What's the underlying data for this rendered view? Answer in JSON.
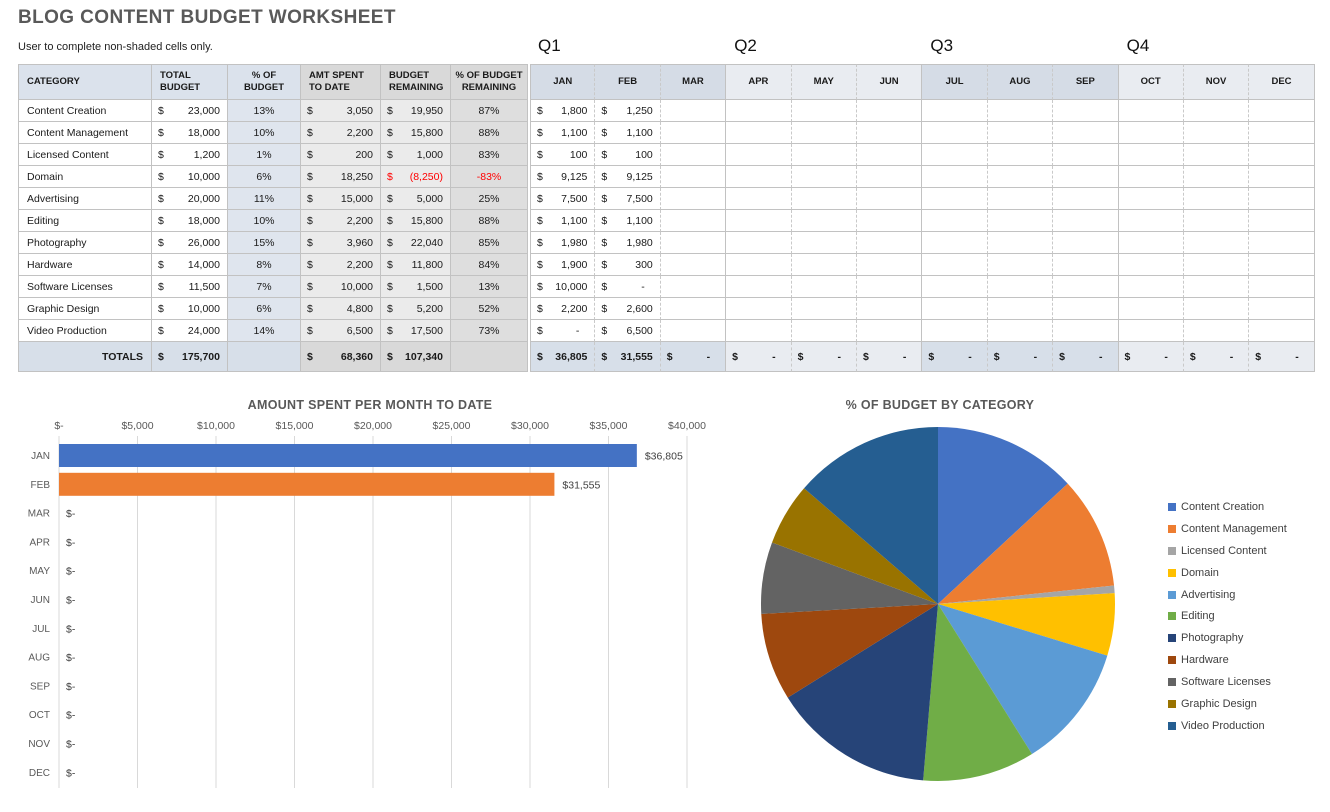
{
  "title": "BLOG CONTENT BUDGET WORKSHEET",
  "subtitle": "User to complete non-shaded cells only.",
  "colors": {
    "accent_blue": "#4472C4",
    "accent_orange": "#ED7D31",
    "negative_red": "#ff0000",
    "header_blue": "#dbe2ec",
    "header_gray": "#d9d9d9"
  },
  "table": {
    "headers": {
      "category": "CATEGORY",
      "total_budget": "TOTAL BUDGET",
      "pct_budget": "% OF BUDGET",
      "amt_spent": "AMT SPENT TO DATE",
      "budget_remaining": "BUDGET REMAINING",
      "pct_remaining": "% OF BUDGET REMAINING"
    },
    "quarters": [
      {
        "label": "Q1",
        "months": [
          "JAN",
          "FEB",
          "MAR"
        ]
      },
      {
        "label": "Q2",
        "months": [
          "APR",
          "MAY",
          "JUN"
        ]
      },
      {
        "label": "Q3",
        "months": [
          "JUL",
          "AUG",
          "SEP"
        ]
      },
      {
        "label": "Q4",
        "months": [
          "OCT",
          "NOV",
          "DEC"
        ]
      }
    ],
    "rows": [
      {
        "category": "Content Creation",
        "total": "23,000",
        "pct": "13%",
        "spent": "3,050",
        "remaining": "19,950",
        "remaining_red": false,
        "pct_rem": "87%",
        "pct_rem_red": false,
        "months": [
          "1,800",
          "1,250",
          "",
          "",
          "",
          "",
          "",
          "",
          "",
          "",
          "",
          ""
        ]
      },
      {
        "category": "Content Management",
        "total": "18,000",
        "pct": "10%",
        "spent": "2,200",
        "remaining": "15,800",
        "remaining_red": false,
        "pct_rem": "88%",
        "pct_rem_red": false,
        "months": [
          "1,100",
          "1,100",
          "",
          "",
          "",
          "",
          "",
          "",
          "",
          "",
          "",
          ""
        ]
      },
      {
        "category": "Licensed Content",
        "total": "1,200",
        "pct": "1%",
        "spent": "200",
        "remaining": "1,000",
        "remaining_red": false,
        "pct_rem": "83%",
        "pct_rem_red": false,
        "months": [
          "100",
          "100",
          "",
          "",
          "",
          "",
          "",
          "",
          "",
          "",
          "",
          ""
        ]
      },
      {
        "category": "Domain",
        "total": "10,000",
        "pct": "6%",
        "spent": "18,250",
        "remaining": "(8,250)",
        "remaining_red": true,
        "pct_rem": "-83%",
        "pct_rem_red": true,
        "months": [
          "9,125",
          "9,125",
          "",
          "",
          "",
          "",
          "",
          "",
          "",
          "",
          "",
          ""
        ]
      },
      {
        "category": "Advertising",
        "total": "20,000",
        "pct": "11%",
        "spent": "15,000",
        "remaining": "5,000",
        "remaining_red": false,
        "pct_rem": "25%",
        "pct_rem_red": false,
        "months": [
          "7,500",
          "7,500",
          "",
          "",
          "",
          "",
          "",
          "",
          "",
          "",
          "",
          ""
        ]
      },
      {
        "category": "Editing",
        "total": "18,000",
        "pct": "10%",
        "spent": "2,200",
        "remaining": "15,800",
        "remaining_red": false,
        "pct_rem": "88%",
        "pct_rem_red": false,
        "months": [
          "1,100",
          "1,100",
          "",
          "",
          "",
          "",
          "",
          "",
          "",
          "",
          "",
          ""
        ]
      },
      {
        "category": "Photography",
        "total": "26,000",
        "pct": "15%",
        "spent": "3,960",
        "remaining": "22,040",
        "remaining_red": false,
        "pct_rem": "85%",
        "pct_rem_red": false,
        "months": [
          "1,980",
          "1,980",
          "",
          "",
          "",
          "",
          "",
          "",
          "",
          "",
          "",
          ""
        ]
      },
      {
        "category": "Hardware",
        "total": "14,000",
        "pct": "8%",
        "spent": "2,200",
        "remaining": "11,800",
        "remaining_red": false,
        "pct_rem": "84%",
        "pct_rem_red": false,
        "months": [
          "1,900",
          "300",
          "",
          "",
          "",
          "",
          "",
          "",
          "",
          "",
          "",
          ""
        ]
      },
      {
        "category": "Software Licenses",
        "total": "11,500",
        "pct": "7%",
        "spent": "10,000",
        "remaining": "1,500",
        "remaining_red": false,
        "pct_rem": "13%",
        "pct_rem_red": false,
        "months": [
          "10,000",
          "-",
          "",
          "",
          "",
          "",
          "",
          "",
          "",
          "",
          "",
          ""
        ]
      },
      {
        "category": "Graphic Design",
        "total": "10,000",
        "pct": "6%",
        "spent": "4,800",
        "remaining": "5,200",
        "remaining_red": false,
        "pct_rem": "52%",
        "pct_rem_red": false,
        "months": [
          "2,200",
          "2,600",
          "",
          "",
          "",
          "",
          "",
          "",
          "",
          "",
          "",
          ""
        ]
      },
      {
        "category": "Video Production",
        "total": "24,000",
        "pct": "14%",
        "spent": "6,500",
        "remaining": "17,500",
        "remaining_red": false,
        "pct_rem": "73%",
        "pct_rem_red": false,
        "months": [
          "-",
          "6,500",
          "",
          "",
          "",
          "",
          "",
          "",
          "",
          "",
          "",
          ""
        ]
      }
    ],
    "totals": {
      "label": "TOTALS",
      "total": "175,700",
      "spent": "68,360",
      "remaining": "107,340",
      "months": [
        "36,805",
        "31,555",
        "-",
        "-",
        "-",
        "-",
        "-",
        "-",
        "-",
        "-",
        "-",
        "-"
      ]
    }
  },
  "chart_data": [
    {
      "type": "bar",
      "orientation": "horizontal",
      "title": "AMOUNT SPENT PER MONTH TO DATE",
      "categories": [
        "JAN",
        "FEB",
        "MAR",
        "APR",
        "MAY",
        "JUN",
        "JUL",
        "AUG",
        "SEP",
        "OCT",
        "NOV",
        "DEC"
      ],
      "values": [
        36805,
        31555,
        0,
        0,
        0,
        0,
        0,
        0,
        0,
        0,
        0,
        0
      ],
      "value_labels": [
        "$36,805",
        "$31,555",
        "$-",
        "$-",
        "$-",
        "$-",
        "$-",
        "$-",
        "$-",
        "$-",
        "$-",
        "$-"
      ],
      "xlim": [
        0,
        40000
      ],
      "x_tick_labels": [
        "$-",
        "$5,000",
        "$10,000",
        "$15,000",
        "$20,000",
        "$25,000",
        "$30,000",
        "$35,000",
        "$40,000"
      ],
      "grid": true,
      "bar_colors": [
        "#4472C4",
        "#ED7D31",
        "#4472C4",
        "#4472C4",
        "#4472C4",
        "#4472C4",
        "#4472C4",
        "#4472C4",
        "#4472C4",
        "#4472C4",
        "#4472C4",
        "#4472C4"
      ]
    },
    {
      "type": "pie",
      "title": "% OF BUDGET BY CATEGORY",
      "labels": [
        "Content Creation",
        "Content Management",
        "Licensed Content",
        "Domain",
        "Advertising",
        "Editing",
        "Photography",
        "Hardware",
        "Software Licenses",
        "Graphic Design",
        "Video Production"
      ],
      "values": [
        23000,
        18000,
        1200,
        10000,
        20000,
        18000,
        26000,
        14000,
        11500,
        10000,
        24000
      ],
      "colors": [
        "#4472C4",
        "#ED7D31",
        "#A5A5A5",
        "#FFC000",
        "#5B9BD5",
        "#70AD47",
        "#264478",
        "#9E480E",
        "#636363",
        "#997300",
        "#255E91"
      ],
      "legend_position": "right",
      "start_angle_deg": 0
    }
  ]
}
